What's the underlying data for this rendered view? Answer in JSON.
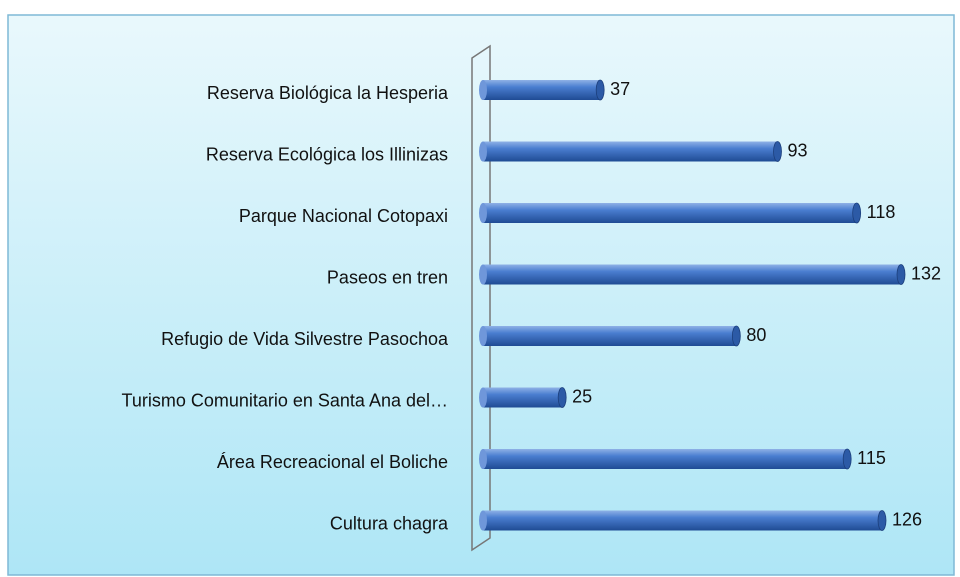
{
  "chart_data": {
    "type": "bar",
    "orientation": "horizontal",
    "categories": [
      "Reserva Biológica la Hesperia",
      "Reserva Ecológica los Illinizas",
      "Parque Nacional Cotopaxi",
      "Paseos en tren",
      "Refugio de Vida Silvestre Pasochoa",
      "Turismo Comunitario en Santa Ana del…",
      "Área Recreacional el Boliche",
      "Cultura chagra"
    ],
    "values": [
      37,
      93,
      118,
      132,
      80,
      25,
      115,
      126
    ],
    "color": "#3a6cc0",
    "xlim": [
      0,
      150
    ]
  }
}
